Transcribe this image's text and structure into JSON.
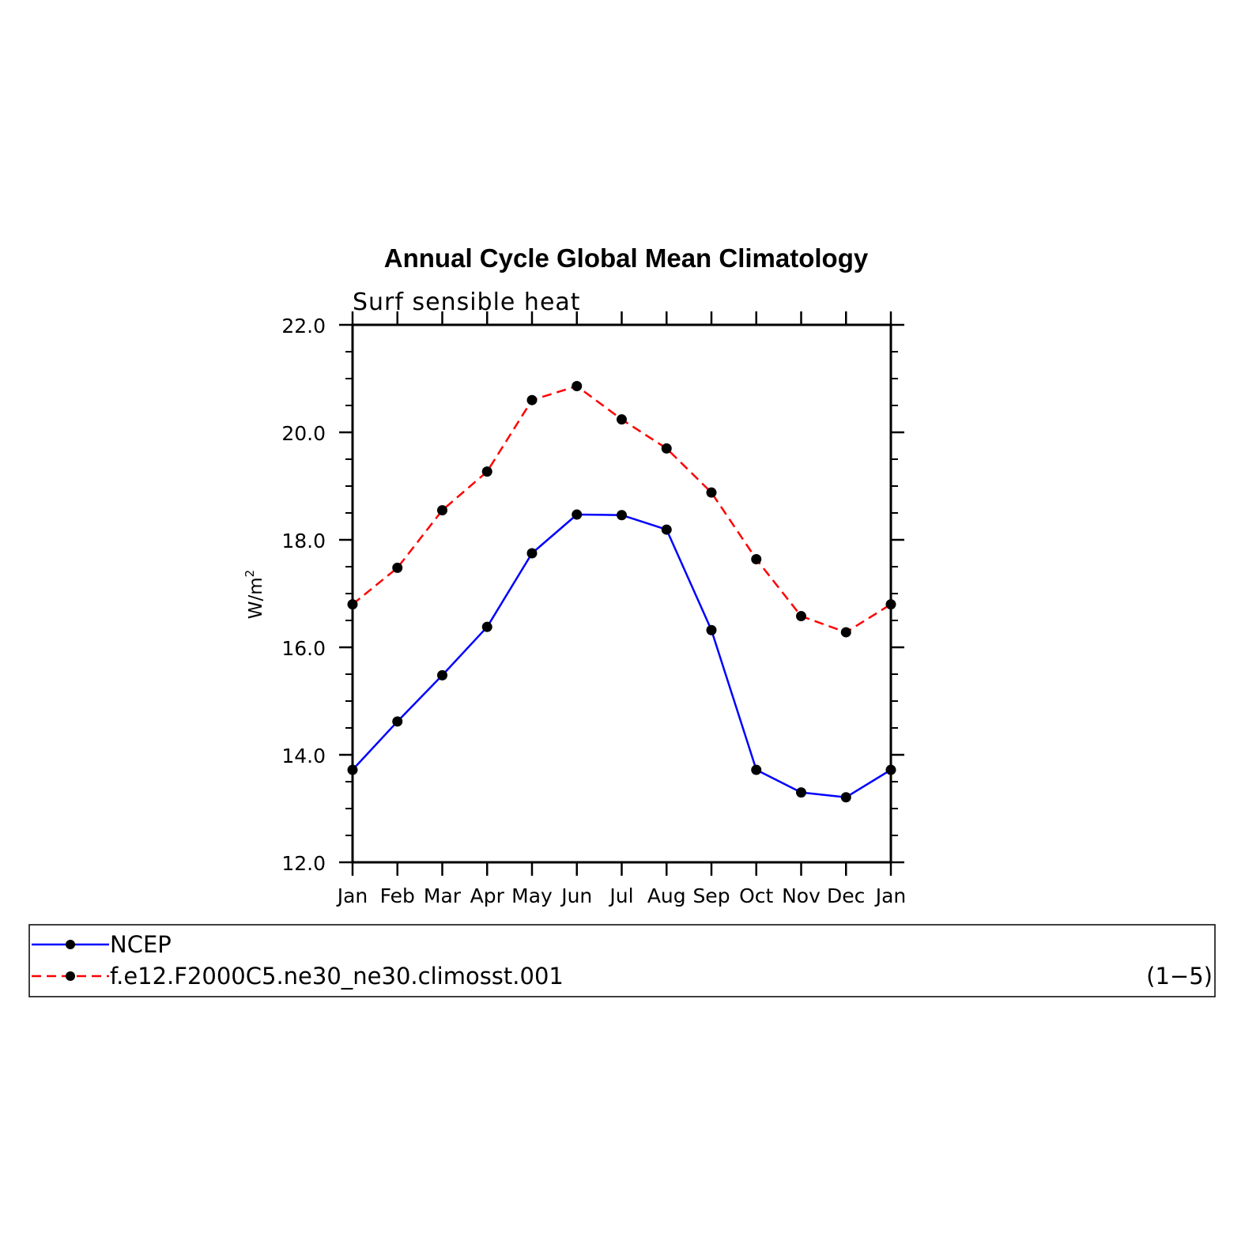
{
  "chart_data": {
    "type": "line",
    "title": "Annual Cycle Global Mean Climatology",
    "subtitle": "Surf  sensible  heat",
    "xlabel": "",
    "ylabel": "W/m",
    "ylabel_superscript": "2",
    "categories": [
      "Jan",
      "Feb",
      "Mar",
      "Apr",
      "May",
      "Jun",
      "Jul",
      "Aug",
      "Sep",
      "Oct",
      "Nov",
      "Dec",
      "Jan"
    ],
    "ylim": [
      12.0,
      22.0
    ],
    "yticks": [
      "12.0",
      "14.0",
      "16.0",
      "18.0",
      "20.0",
      "22.0"
    ],
    "series": [
      {
        "name": "NCEP",
        "color": "#0000ff",
        "linestyle": "solid",
        "values": [
          13.72,
          14.62,
          15.48,
          16.38,
          17.75,
          18.47,
          18.46,
          18.19,
          16.32,
          13.72,
          13.3,
          13.21,
          13.72
        ]
      },
      {
        "name": "f.e12.F2000C5.ne30_ne30.climosst.001",
        "color": "#ff0000",
        "linestyle": "dashed",
        "values": [
          16.8,
          17.48,
          18.55,
          19.27,
          20.6,
          20.86,
          20.24,
          19.7,
          18.88,
          17.64,
          16.58,
          16.28,
          16.8
        ]
      }
    ],
    "legend_note": "(1−5)",
    "marker_color": "#000000"
  }
}
